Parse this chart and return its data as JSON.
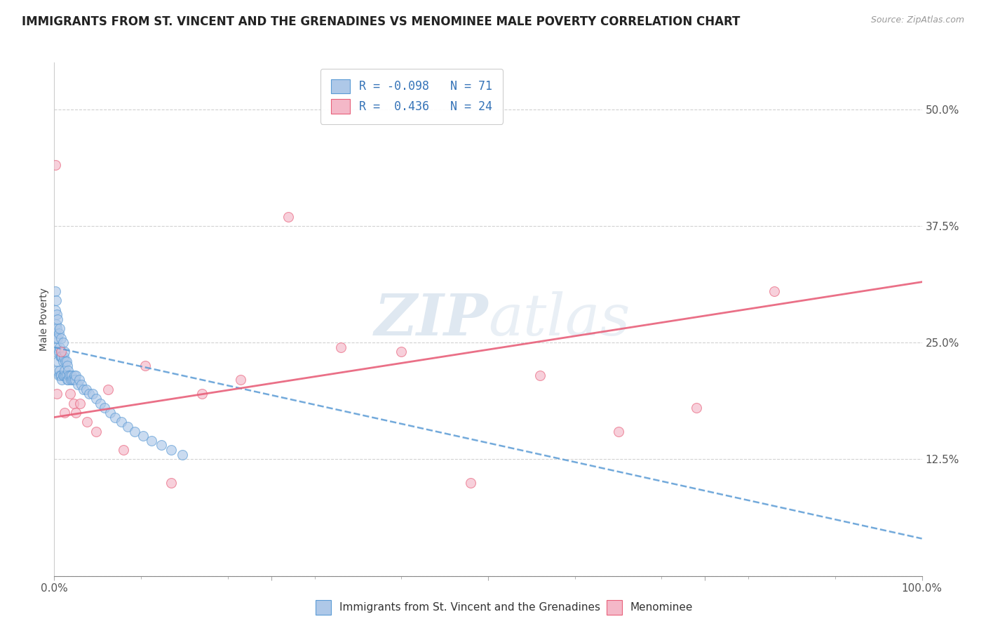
{
  "title": "IMMIGRANTS FROM ST. VINCENT AND THE GRENADINES VS MENOMINEE MALE POVERTY CORRELATION CHART",
  "source": "Source: ZipAtlas.com",
  "ylabel": "Male Poverty",
  "xlim": [
    0.0,
    1.0
  ],
  "ylim": [
    0.0,
    0.55
  ],
  "xtick_positions": [
    0.0,
    0.25,
    0.5,
    0.75,
    1.0
  ],
  "xticklabels": [
    "0.0%",
    "",
    "",
    "",
    "100.0%"
  ],
  "ytick_positions": [
    0.0,
    0.125,
    0.25,
    0.375,
    0.5
  ],
  "yticklabels": [
    "",
    "12.5%",
    "25.0%",
    "37.5%",
    "50.0%"
  ],
  "blue_face_color": "#aec8e8",
  "blue_edge_color": "#5b9bd5",
  "pink_face_color": "#f4b8c8",
  "pink_edge_color": "#e8607a",
  "blue_line_color": "#5b9bd5",
  "pink_line_color": "#e8607a",
  "label_color": "#3674b8",
  "tick_color": "#555555",
  "grid_color": "#cccccc",
  "title_color": "#222222",
  "source_color": "#999999",
  "legend_R1": "-0.098",
  "legend_N1": "71",
  "legend_R2": "0.436",
  "legend_N2": "24",
  "legend_label1": "Immigrants from St. Vincent and the Grenadines",
  "legend_label2": "Menominee",
  "watermark_left": "ZIP",
  "watermark_right": "atlas",
  "blue_x": [
    0.001,
    0.001,
    0.001,
    0.002,
    0.002,
    0.002,
    0.002,
    0.003,
    0.003,
    0.003,
    0.003,
    0.004,
    0.004,
    0.004,
    0.005,
    0.005,
    0.005,
    0.006,
    0.006,
    0.006,
    0.007,
    0.007,
    0.008,
    0.008,
    0.008,
    0.009,
    0.009,
    0.01,
    0.01,
    0.01,
    0.011,
    0.011,
    0.012,
    0.012,
    0.013,
    0.013,
    0.014,
    0.014,
    0.015,
    0.015,
    0.016,
    0.016,
    0.017,
    0.018,
    0.019,
    0.02,
    0.021,
    0.022,
    0.023,
    0.024,
    0.025,
    0.027,
    0.029,
    0.031,
    0.034,
    0.037,
    0.04,
    0.044,
    0.048,
    0.053,
    0.058,
    0.064,
    0.07,
    0.077,
    0.085,
    0.093,
    0.102,
    0.112,
    0.123,
    0.135,
    0.148
  ],
  "blue_y": [
    0.285,
    0.26,
    0.305,
    0.24,
    0.27,
    0.255,
    0.295,
    0.22,
    0.245,
    0.265,
    0.28,
    0.23,
    0.255,
    0.275,
    0.215,
    0.24,
    0.26,
    0.22,
    0.245,
    0.265,
    0.215,
    0.235,
    0.215,
    0.235,
    0.255,
    0.21,
    0.235,
    0.215,
    0.23,
    0.25,
    0.215,
    0.235,
    0.22,
    0.24,
    0.215,
    0.23,
    0.215,
    0.23,
    0.21,
    0.225,
    0.21,
    0.22,
    0.215,
    0.215,
    0.21,
    0.215,
    0.21,
    0.21,
    0.215,
    0.21,
    0.215,
    0.205,
    0.21,
    0.205,
    0.2,
    0.2,
    0.195,
    0.195,
    0.19,
    0.185,
    0.18,
    0.175,
    0.17,
    0.165,
    0.16,
    0.155,
    0.15,
    0.145,
    0.14,
    0.135,
    0.13
  ],
  "pink_x": [
    0.001,
    0.003,
    0.008,
    0.012,
    0.018,
    0.022,
    0.025,
    0.03,
    0.038,
    0.048,
    0.062,
    0.08,
    0.105,
    0.135,
    0.17,
    0.215,
    0.27,
    0.33,
    0.4,
    0.48,
    0.56,
    0.65,
    0.74,
    0.83
  ],
  "pink_y": [
    0.44,
    0.195,
    0.24,
    0.175,
    0.195,
    0.185,
    0.175,
    0.185,
    0.165,
    0.155,
    0.2,
    0.135,
    0.225,
    0.1,
    0.195,
    0.21,
    0.385,
    0.245,
    0.24,
    0.1,
    0.215,
    0.155,
    0.18,
    0.305
  ],
  "blue_line_x0": 0.0,
  "blue_line_x1": 1.0,
  "blue_line_y0": 0.245,
  "blue_line_y1": 0.04,
  "pink_line_x0": 0.0,
  "pink_line_x1": 1.0,
  "pink_line_y0": 0.17,
  "pink_line_y1": 0.315
}
